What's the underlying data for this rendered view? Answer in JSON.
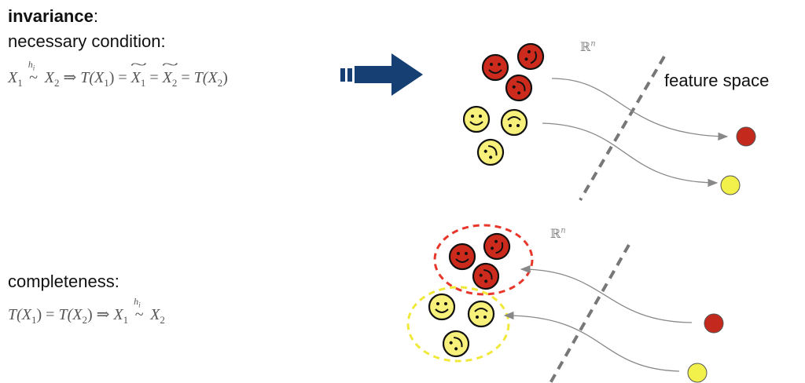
{
  "top": {
    "title": "invariance",
    "title_suffix": ":",
    "subtitle": "necessary condition:",
    "formula": {
      "x1": "X",
      "one": "1",
      "relation_sup": "h",
      "relation_sup_sub": "i",
      "relation": "~",
      "x2": "X",
      "two": "2",
      "implies": "⇒",
      "t1": "T(X",
      "t1_close": ")",
      "eq": "=",
      "xt1": "X",
      "xt2": "X",
      "t2": "T(X",
      "t2_close": ")"
    },
    "space_symbol": "ℝ",
    "space_exp": "n",
    "feature_label": "feature space"
  },
  "bottom": {
    "title": "completeness:",
    "formula": {
      "t1": "T(X",
      "one": "1",
      "t1_close": ")",
      "eq": "=",
      "t2": "T(X",
      "two": "2",
      "t2_close": ")",
      "implies": "⇒",
      "x1": "X",
      "relation_sup": "h",
      "relation_sup_sub": "i",
      "relation": "~",
      "x2": "X"
    },
    "space_symbol": "ℝ",
    "space_exp": "n"
  },
  "colors": {
    "red_face": "#cc2a1c",
    "yellow_face": "#f7f07a",
    "arrow_blue": "#163f73",
    "dashed_red": "#e8372a",
    "dashed_yellow": "#f1e93a",
    "divider_gray": "#777777",
    "curve_gray": "#888888",
    "red_dot": "#c32a1d",
    "yellow_dot": "#f2f04a"
  },
  "icons": {
    "implication_arrow": "thick-block-arrow-icon",
    "faces": "smiley-face-icon"
  }
}
